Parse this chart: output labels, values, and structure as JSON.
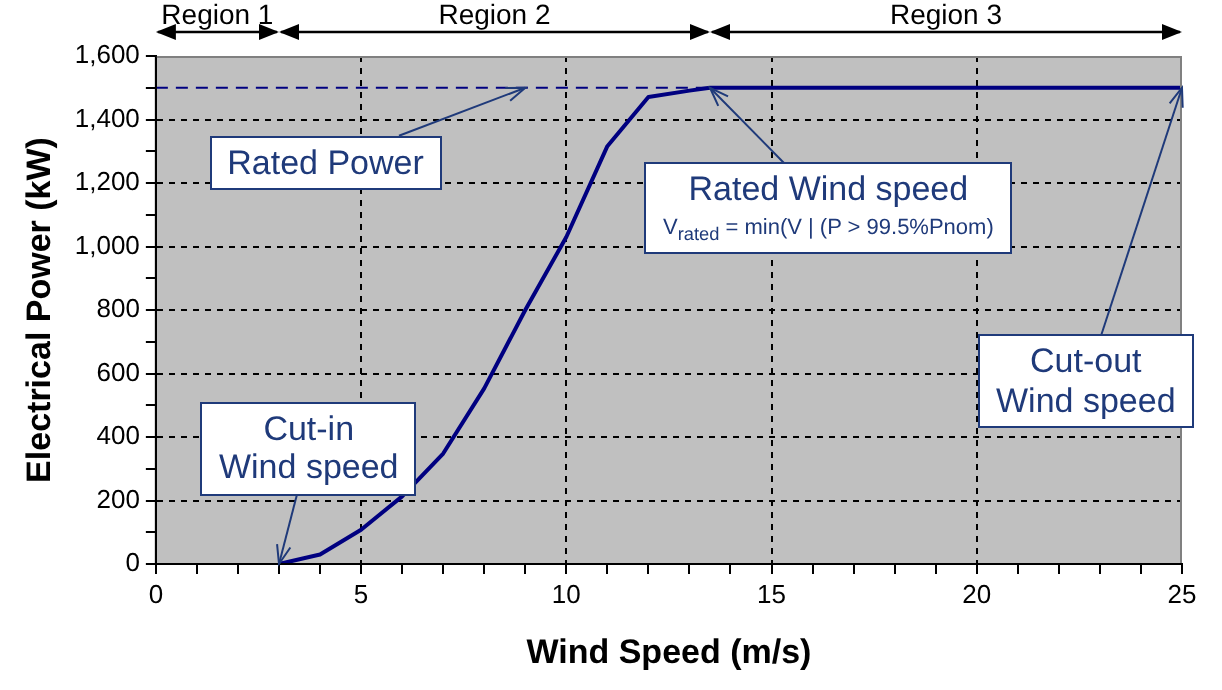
{
  "chart_data": {
    "type": "line",
    "xlabel": "Wind Speed (m/s)",
    "ylabel": "Electrical Power (kW)",
    "x": [
      3,
      4,
      5,
      6,
      7,
      8,
      9,
      10,
      11,
      12,
      13,
      13.5,
      25
    ],
    "series": [
      {
        "color": "#000080",
        "values": [
          0,
          30,
          108,
          213,
          348,
          553,
          800,
          1030,
          1316,
          1471,
          1491,
          1500,
          1500
        ]
      }
    ],
    "xlim": [
      0,
      25
    ],
    "xticks": [
      0,
      {
        "value": 1,
        "label": null
      },
      {
        "value": 2,
        "label": null
      },
      {
        "value": 3,
        "label": null
      },
      {
        "value": 4,
        "label": null
      },
      5,
      {
        "value": 6,
        "label": null
      },
      {
        "value": 7,
        "label": null
      },
      {
        "value": 8,
        "label": null
      },
      {
        "value": 9,
        "label": null
      },
      10,
      {
        "value": 11,
        "label": null
      },
      {
        "value": 12,
        "label": null
      },
      {
        "value": 13,
        "label": null
      },
      {
        "value": 14,
        "label": null
      },
      15,
      {
        "value": 16,
        "label": null
      },
      {
        "value": 17,
        "label": null
      },
      {
        "value": 18,
        "label": null
      },
      {
        "value": 19,
        "label": null
      },
      20,
      {
        "value": 21,
        "label": null
      },
      {
        "value": 22,
        "label": null
      },
      {
        "value": 23,
        "label": null
      },
      {
        "value": 24,
        "label": null
      },
      25
    ],
    "ylim": [
      0,
      1600
    ],
    "yticks": [
      0,
      {
        "value": 100,
        "label": null
      },
      200,
      {
        "value": 300,
        "label": null
      },
      400,
      {
        "value": 500,
        "label": null
      },
      600,
      {
        "value": 700,
        "label": null
      },
      800,
      {
        "value": 900,
        "label": null
      },
      {
        "value": 1000,
        "label": "1,000"
      },
      {
        "value": 1100,
        "label": null
      },
      {
        "value": 1200,
        "label": "1,200"
      },
      {
        "value": 1300,
        "label": null
      },
      {
        "value": 1400,
        "label": "1,400"
      },
      {
        "value": 1500,
        "label": null
      },
      {
        "value": 1600,
        "label": "1,600"
      }
    ],
    "grid": true,
    "legend": false,
    "marker": "none",
    "line_style": "solid",
    "ref_lines": [
      {
        "axis": "y",
        "value": 1500,
        "color": "#000080",
        "line_style": "dashed"
      }
    ],
    "annotations": [
      "Region 1",
      "Region 2",
      "Region 3",
      {
        "text": "Rated Power",
        "x": 9,
        "y": 1500
      },
      {
        "text": "Rated Wind speed",
        "x": 13.5,
        "y": 1500
      },
      "V$_{rated}$ = min(V | (P > 99.5%Pnom)",
      {
        "text": "Cut-in\nWind speed",
        "x": 3,
        "y": 0
      },
      {
        "text": "Cut-out\nWind speed",
        "x": 25,
        "y": 1500
      }
    ]
  }
}
